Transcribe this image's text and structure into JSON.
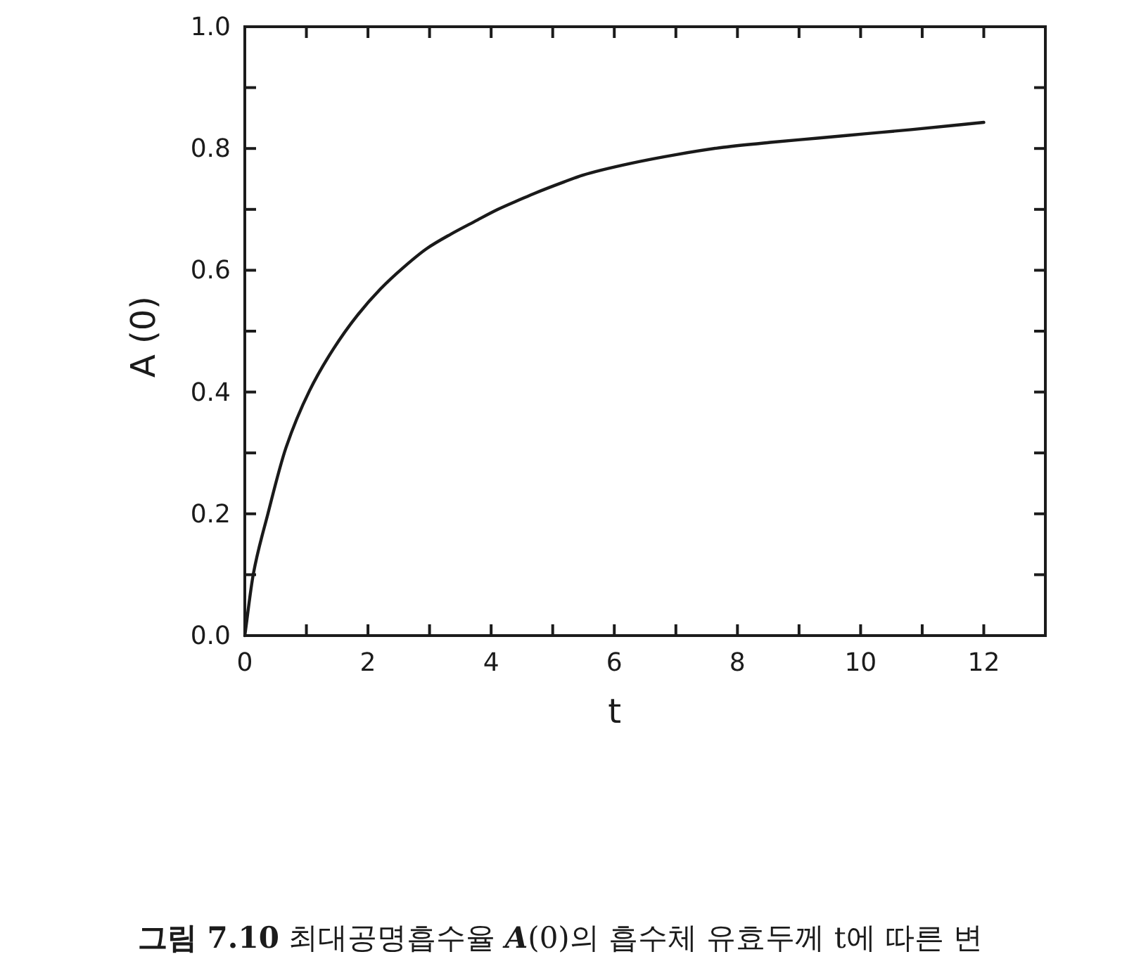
{
  "chart_data": {
    "type": "line",
    "xlabel": "t",
    "ylabel": "A (0)",
    "annotations": [
      "**그림 7.10** 최대공명흡수율 *A*(0)의 흡수체 유효두께 t에 따른 변"
    ],
    "x": [
      0,
      0.14,
      0.37,
      0.67,
      1.05,
      1.44,
      1.82,
      2.2,
      2.58,
      2.96,
      3.34,
      3.73,
      4.11,
      4.49,
      4.72,
      5.18,
      5.48,
      6.24,
      7.01,
      7.77,
      8.53,
      9.3,
      10.06,
      10.82,
      12
    ],
    "series": [
      {
        "color": "#1a1a1a",
        "values": [
          0,
          0.102,
          0.198,
          0.309,
          0.402,
          0.471,
          0.525,
          0.569,
          0.605,
          0.636,
          0.659,
          0.68,
          0.7,
          0.717,
          0.727,
          0.745,
          0.756,
          0.775,
          0.79,
          0.802,
          0.81,
          0.817,
          0.824,
          0.831,
          0.843
        ]
      }
    ],
    "xlim": [
      0,
      13
    ],
    "ylim": [
      0,
      1
    ],
    "xticks": [
      0,
      {
        "value": 1,
        "label": null
      },
      2,
      {
        "value": 3,
        "label": null
      },
      4,
      {
        "value": 5,
        "label": null
      },
      6,
      {
        "value": 7,
        "label": null
      },
      8,
      {
        "value": 9,
        "label": null
      },
      10,
      {
        "value": 11,
        "label": null
      },
      12
    ],
    "yticks": [
      {
        "value": 0,
        "label": "0.0"
      },
      {
        "value": 0.1,
        "label": null
      },
      0.2,
      {
        "value": 0.3,
        "label": null
      },
      0.4,
      {
        "value": 0.5,
        "label": null
      },
      0.6,
      {
        "value": 0.7,
        "label": null
      },
      0.8,
      {
        "value": 0.9,
        "label": null
      },
      {
        "value": 1,
        "label": "1.0"
      }
    ]
  }
}
